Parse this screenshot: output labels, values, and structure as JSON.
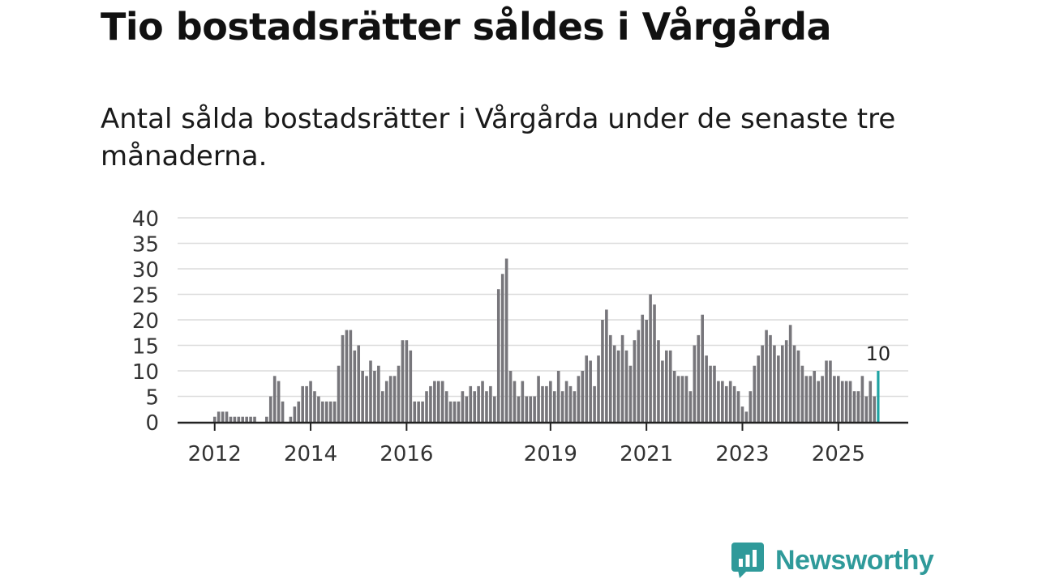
{
  "header": {
    "title": "Tio bostadsrätter såldes i Vårgårda",
    "subtitle": "Antal sålda bostadsrätter i Vårgårda under de senaste tre månaderna."
  },
  "brand": {
    "name": "Newsworthy",
    "color": "#2f9a9a"
  },
  "colors": {
    "bar": "#77767b",
    "highlight": "#1fa3a3",
    "grid": "#dcdcdc",
    "axis": "#222222",
    "text": "#333333"
  },
  "chart_data": {
    "type": "bar",
    "title": "Tio bostadsrätter såldes i Vårgårda",
    "subtitle": "Antal sålda bostadsrätter i Vårgårda under de senaste tre månaderna.",
    "xlabel": "",
    "ylabel": "",
    "ylim": [
      0,
      40
    ],
    "yticks": [
      0,
      5,
      10,
      15,
      20,
      25,
      30,
      35,
      40
    ],
    "grid": true,
    "start": "2011-12",
    "xticks": [
      {
        "label": "2012",
        "index": 1
      },
      {
        "label": "2014",
        "index": 25
      },
      {
        "label": "2016",
        "index": 49
      },
      {
        "label": "2019",
        "index": 85
      },
      {
        "label": "2021",
        "index": 109
      },
      {
        "label": "2023",
        "index": 133
      },
      {
        "label": "2025",
        "index": 157
      }
    ],
    "values": [
      0,
      1,
      2,
      2,
      2,
      1,
      1,
      1,
      1,
      1,
      1,
      1,
      0,
      0,
      1,
      5,
      9,
      8,
      4,
      0,
      1,
      3,
      4,
      7,
      7,
      8,
      6,
      5,
      4,
      4,
      4,
      4,
      11,
      17,
      18,
      18,
      14,
      15,
      10,
      9,
      12,
      10,
      11,
      6,
      8,
      9,
      9,
      11,
      16,
      16,
      14,
      4,
      4,
      4,
      6,
      7,
      8,
      8,
      8,
      6,
      4,
      4,
      4,
      6,
      5,
      7,
      6,
      7,
      8,
      6,
      7,
      5,
      26,
      29,
      32,
      10,
      8,
      5,
      8,
      5,
      5,
      5,
      9,
      7,
      7,
      8,
      6,
      10,
      6,
      8,
      7,
      6,
      9,
      10,
      13,
      12,
      7,
      13,
      20,
      22,
      17,
      15,
      14,
      17,
      14,
      11,
      16,
      18,
      21,
      20,
      25,
      23,
      16,
      12,
      14,
      14,
      10,
      9,
      9,
      9,
      6,
      15,
      17,
      21,
      13,
      11,
      11,
      8,
      8,
      7,
      8,
      7,
      6,
      3,
      2,
      6,
      11,
      13,
      15,
      18,
      17,
      15,
      13,
      15,
      16,
      19,
      15,
      14,
      11,
      9,
      9,
      10,
      8,
      9,
      12,
      12,
      9,
      9,
      8,
      8,
      8,
      6,
      6,
      9,
      5,
      8,
      5,
      10
    ],
    "highlight_index": 167,
    "highlight_label": "10"
  }
}
